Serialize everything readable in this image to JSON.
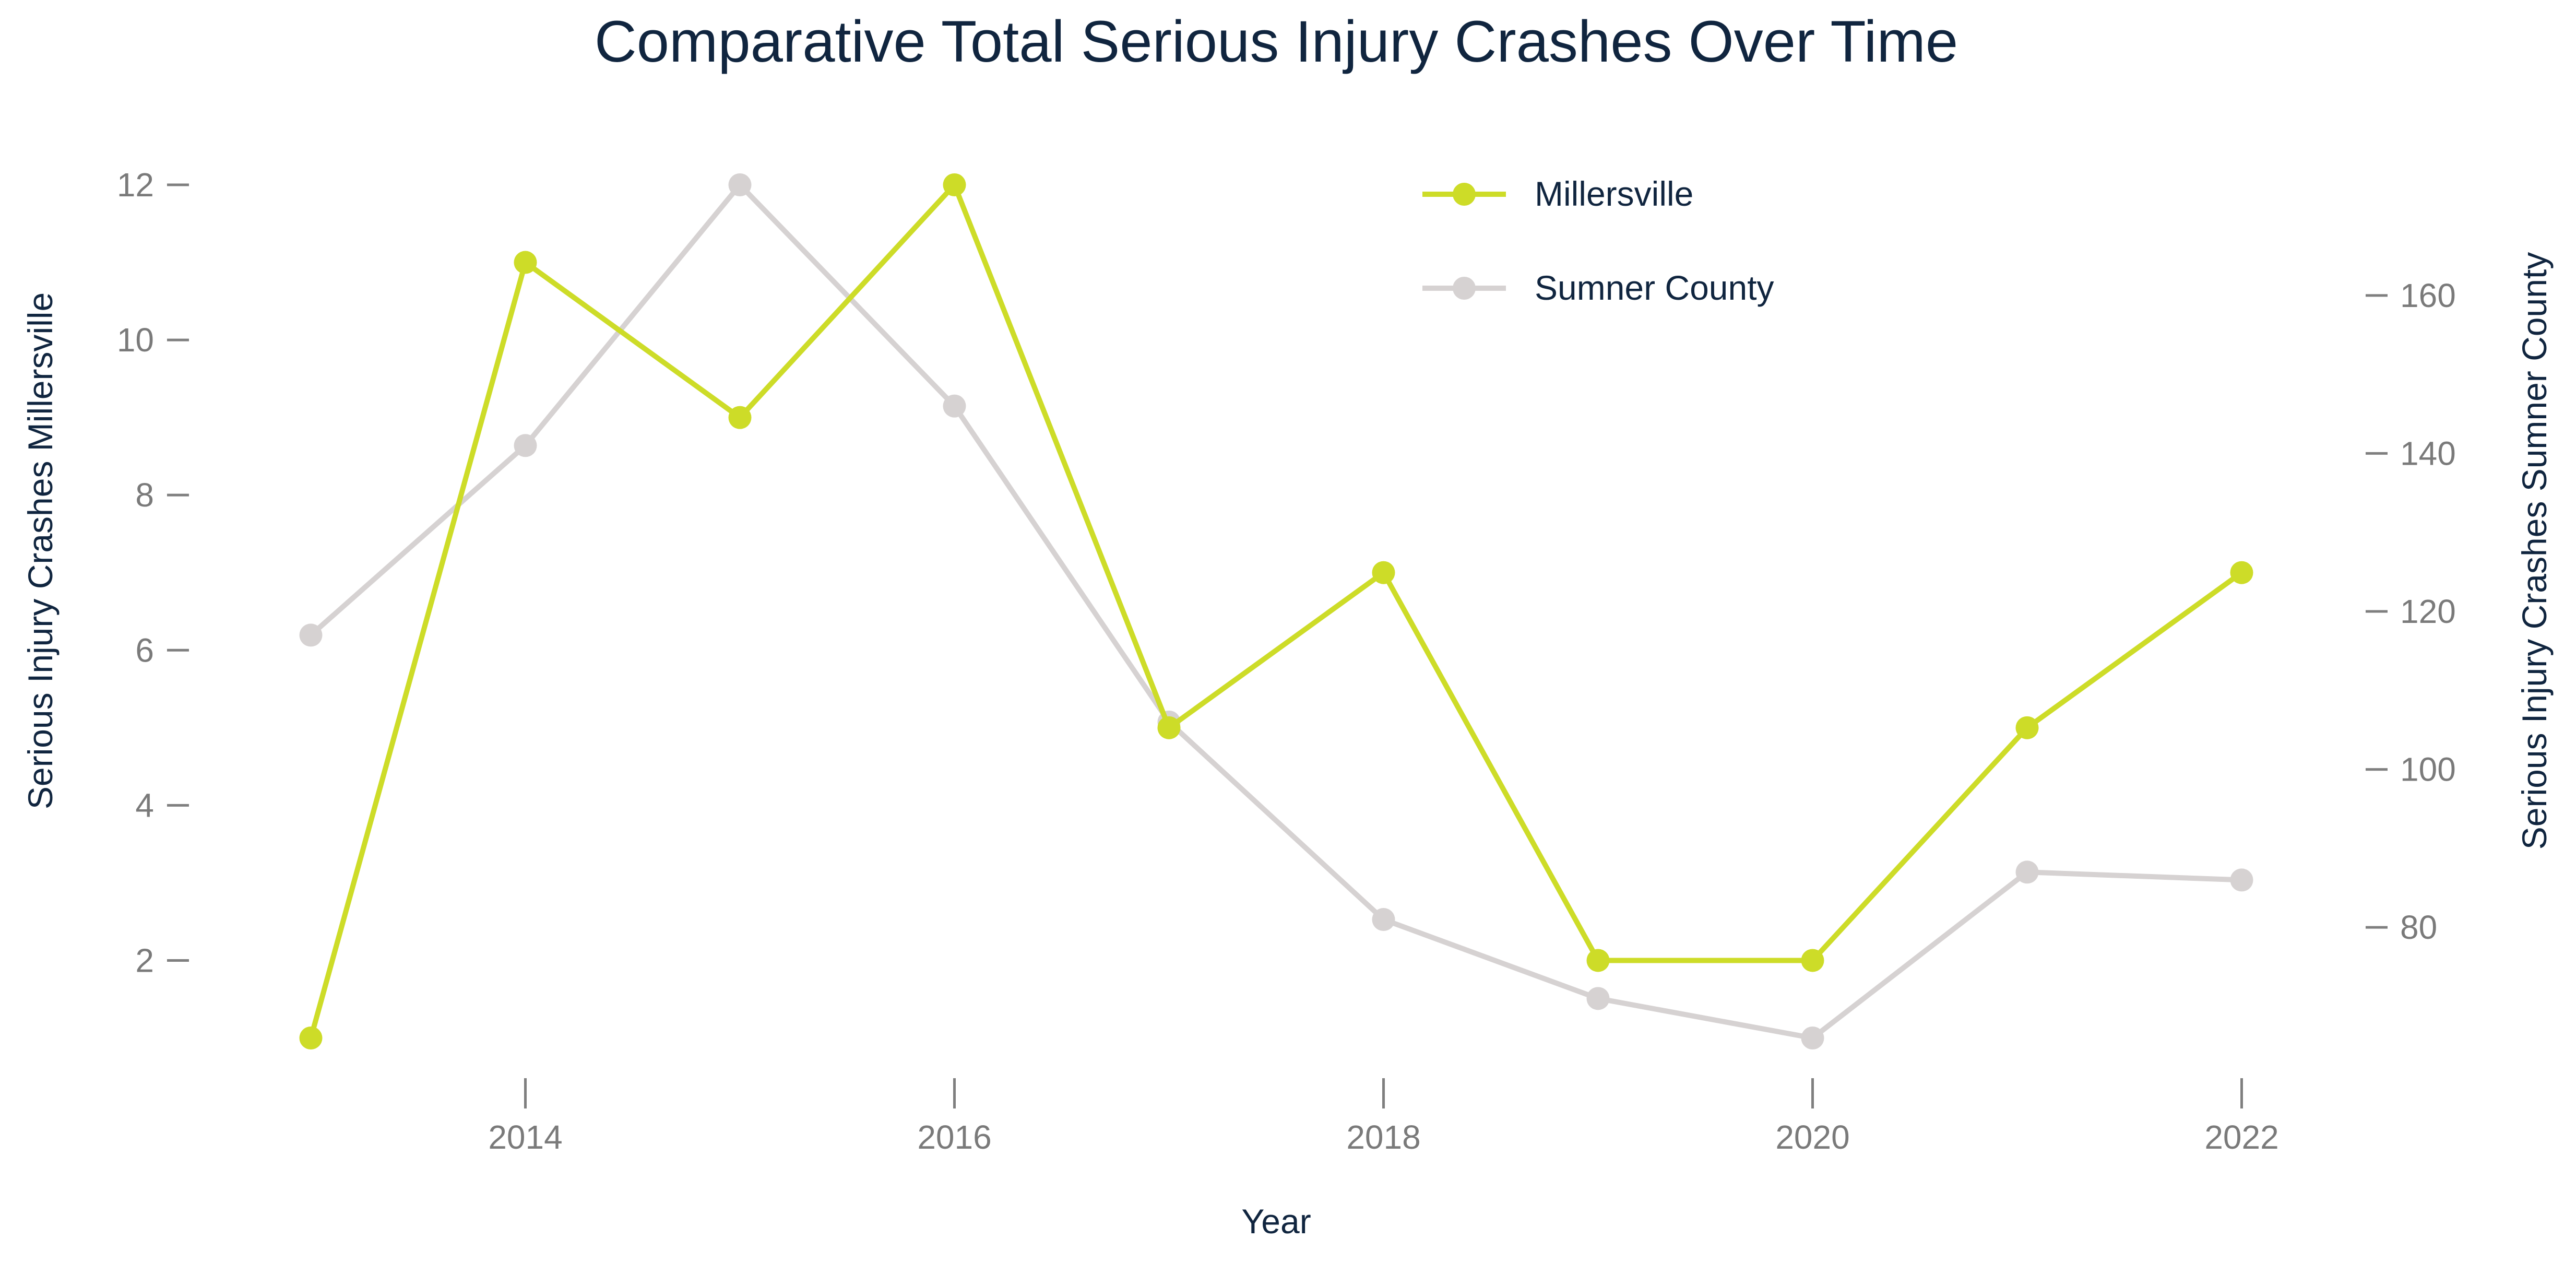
{
  "chart_data": {
    "type": "line",
    "title": "Comparative Total Serious Injury Crashes Over Time",
    "xlabel": "Year",
    "ylabel_left": "Serious Injury Crashes Millersville",
    "ylabel_right": "Serious Injury Crashes Sumner County",
    "x": [
      2013,
      2014,
      2015,
      2016,
      2017,
      2018,
      2019,
      2020,
      2021,
      2022
    ],
    "x_ticks": [
      "2014",
      "2016",
      "2018",
      "2020",
      "2022"
    ],
    "xlim": [
      2012.5,
      2022.5
    ],
    "ylim_left": [
      1,
      12
    ],
    "ylim_right": [
      66,
      174
    ],
    "y_ticks_left": [
      "2",
      "4",
      "6",
      "8",
      "10",
      "12"
    ],
    "y_ticks_right": [
      "80",
      "100",
      "120",
      "140",
      "160"
    ],
    "series": [
      {
        "name": "Millersville",
        "axis": "left",
        "color": "#cddc28",
        "values": [
          1,
          11,
          9,
          12,
          5,
          7,
          2,
          2,
          5,
          7
        ]
      },
      {
        "name": "Sumner County",
        "axis": "right",
        "color": "#d6d2d2",
        "values": [
          117,
          141,
          174,
          146,
          106,
          81,
          71,
          66,
          87,
          86
        ]
      }
    ],
    "legend": "top-right",
    "grid": false
  }
}
